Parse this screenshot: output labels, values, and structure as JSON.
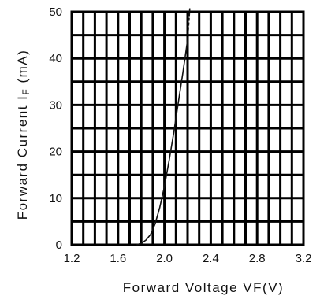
{
  "chart_data": {
    "type": "line",
    "title": "",
    "xlabel": "Forward Voltage VF(V)",
    "ylabel": "Forward Current IF (mA)",
    "ylabel_parts": {
      "prefix": "Forward Current I",
      "sub": "F",
      "suffix": " (mA)"
    },
    "xlim": [
      1.2,
      3.2
    ],
    "ylim": [
      0,
      50
    ],
    "x_ticks": [
      1.2,
      1.6,
      2.0,
      2.4,
      2.8,
      3.2
    ],
    "x_tick_labels": [
      "1.2",
      "1.6",
      "2.0",
      "2.4",
      "2.8",
      "3.2"
    ],
    "y_ticks": [
      0,
      10,
      20,
      30,
      40,
      50
    ],
    "y_tick_labels": [
      "0",
      "10",
      "20",
      "30",
      "40",
      "50"
    ],
    "grid": true,
    "grid_minor_x": 0.1,
    "grid_minor_y": 5,
    "series": [
      {
        "style": "solid",
        "color": "#111111",
        "x": [
          1.76,
          1.8,
          1.84,
          1.88,
          1.92,
          1.96,
          2.0,
          2.04,
          2.08,
          2.12,
          2.16,
          2.2
        ],
        "y": [
          0.0,
          0.3,
          1.0,
          2.2,
          4.5,
          8.0,
          12.5,
          18.0,
          24.0,
          30.5,
          37.0,
          44.0
        ]
      },
      {
        "style": "dashed",
        "color": "#111111",
        "x": [
          2.2,
          2.21,
          2.22
        ],
        "y": [
          44.0,
          47.5,
          51.0
        ]
      }
    ]
  }
}
